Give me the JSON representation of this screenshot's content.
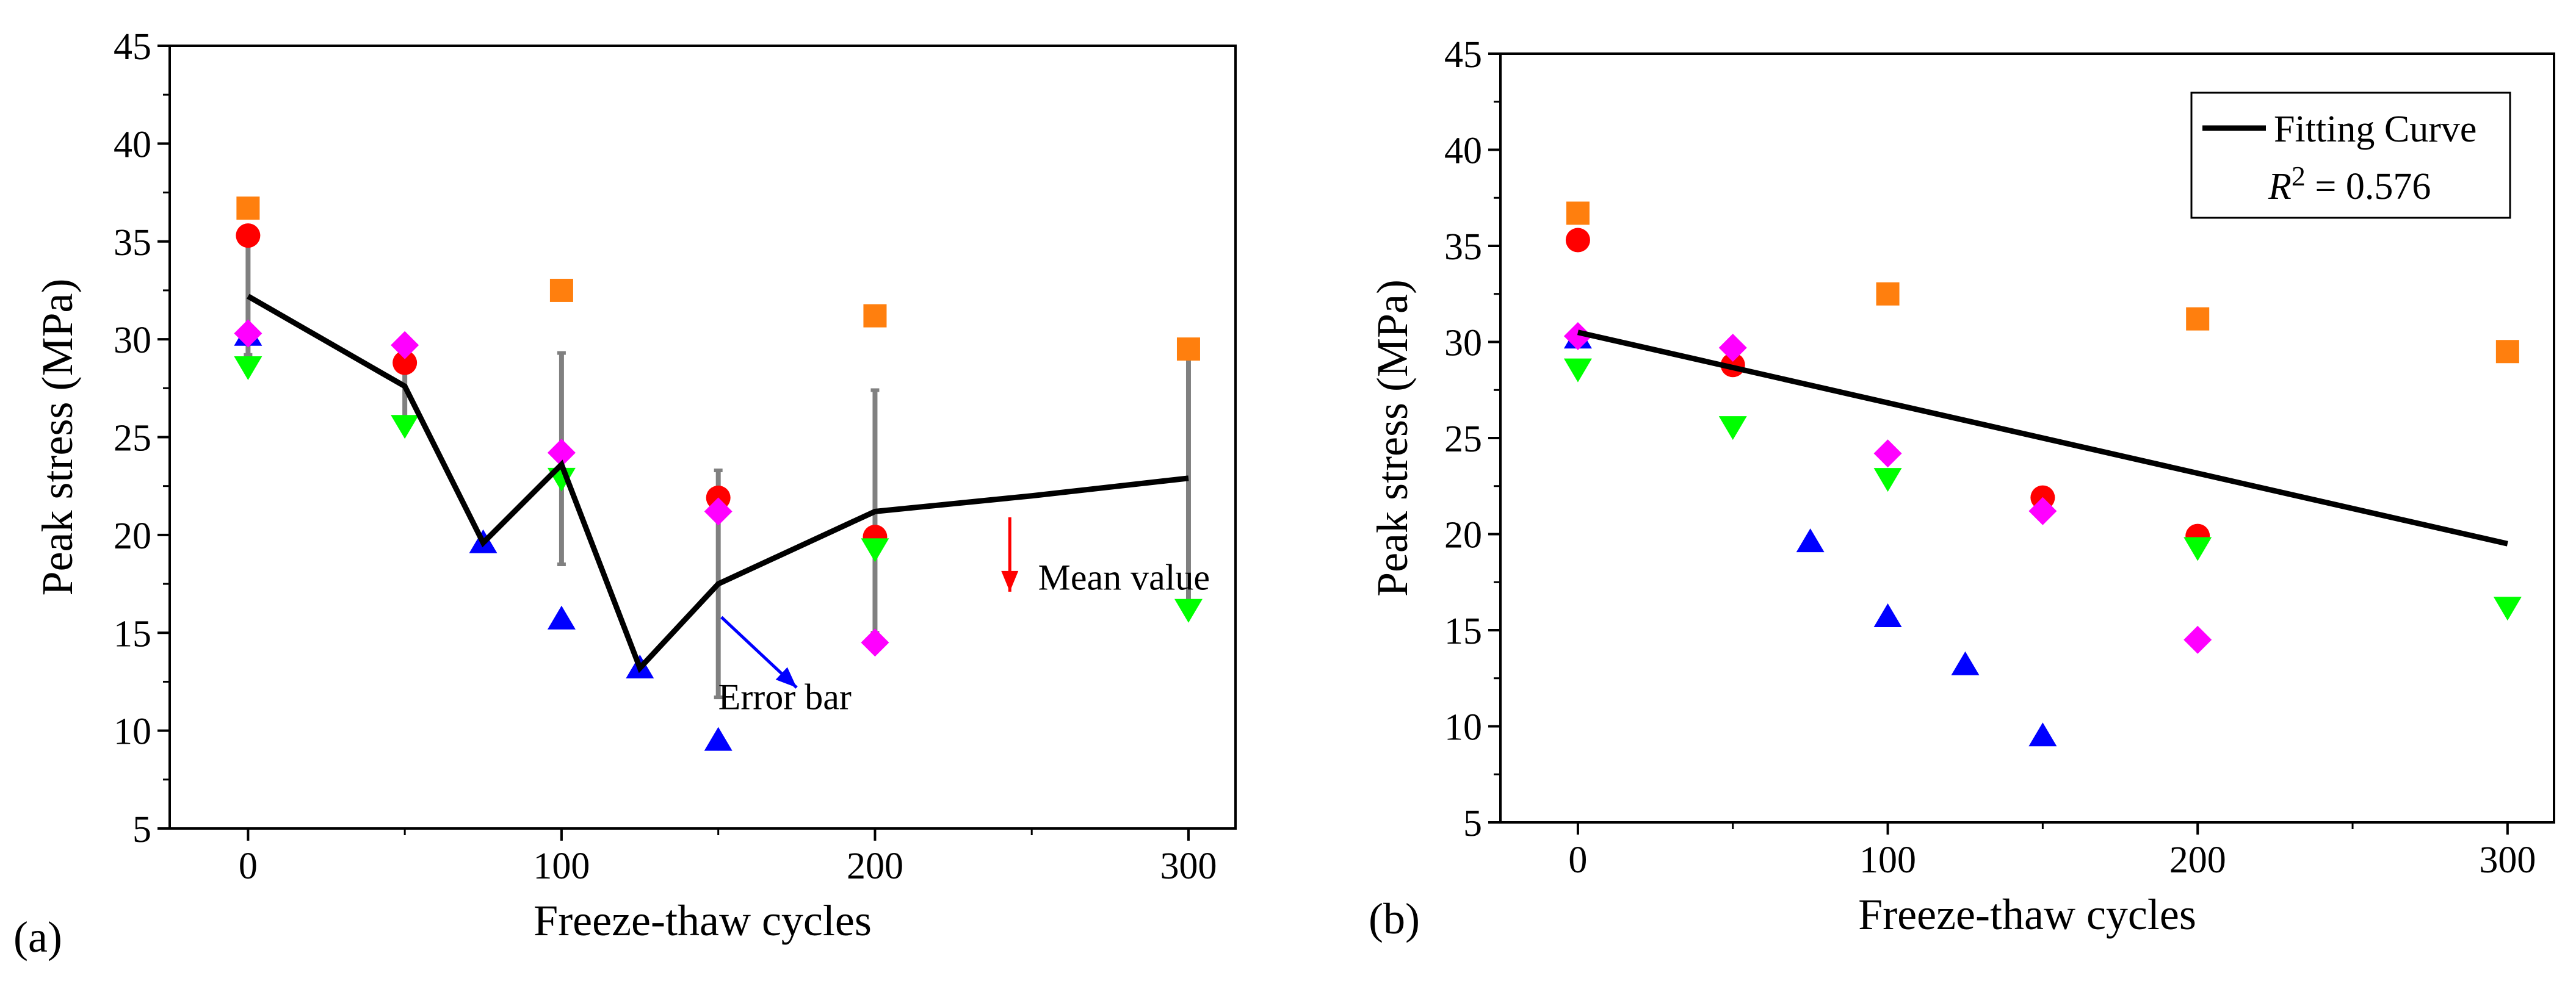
{
  "chart_data": [
    {
      "type": "scatter",
      "panel_label": "(a)",
      "xlabel": "Freeze-thaw cycles",
      "ylabel": "Peak stress (MPa)",
      "xlim": [
        -25,
        315
      ],
      "ylim": [
        5,
        45
      ],
      "xticks": [
        0,
        100,
        200,
        300
      ],
      "yticks": [
        5,
        10,
        15,
        20,
        25,
        30,
        35,
        40,
        45
      ],
      "grid": false,
      "colors": {
        "square": "#ff7f0e",
        "circle": "#ff0000",
        "triangle_up": "#0000ff",
        "triangle_down": "#00ff00",
        "diamond": "#ff00ff",
        "mean_line": "#000000",
        "error_bar": "#808080",
        "mean_annotation": "#ff0000",
        "error_annotation": "#0000ff"
      },
      "series": [
        {
          "name": "square",
          "marker": "square",
          "color": "#ff7f0e",
          "x": [
            0,
            100,
            200,
            300
          ],
          "y": [
            36.7,
            32.5,
            31.2,
            29.5
          ]
        },
        {
          "name": "circle",
          "marker": "circle",
          "color": "#ff0000",
          "x": [
            0,
            50,
            150,
            200
          ],
          "y": [
            35.3,
            28.8,
            21.9,
            19.9
          ]
        },
        {
          "name": "triangle-up",
          "marker": "triangle-up",
          "color": "#0000ff",
          "x": [
            0,
            75,
            100,
            125,
            150
          ],
          "y": [
            30.2,
            19.6,
            15.7,
            13.2,
            9.5
          ]
        },
        {
          "name": "triangle-down",
          "marker": "triangle-down",
          "color": "#00ff00",
          "x": [
            0,
            50,
            100,
            200,
            300
          ],
          "y": [
            28.6,
            25.6,
            22.9,
            19.3,
            16.2
          ]
        },
        {
          "name": "diamond",
          "marker": "diamond",
          "color": "#ff00ff",
          "x": [
            0,
            50,
            100,
            150,
            200
          ],
          "y": [
            30.3,
            29.7,
            24.2,
            21.2,
            14.5
          ]
        }
      ],
      "mean_line": {
        "x": [
          0,
          50,
          75,
          100,
          125,
          150,
          200,
          250,
          300
        ],
        "y": [
          32.2,
          27.6,
          19.6,
          23.6,
          13.2,
          17.5,
          21.2,
          22.0,
          22.9
        ]
      },
      "error_bars": [
        {
          "x": 0,
          "low": 29.2,
          "high": 35.2
        },
        {
          "x": 50,
          "low": 26.0,
          "high": 29.3
        },
        {
          "x": 100,
          "low": 18.5,
          "high": 29.3
        },
        {
          "x": 150,
          "low": 11.7,
          "high": 23.3
        },
        {
          "x": 200,
          "low": 15.0,
          "high": 27.4
        },
        {
          "x": 300,
          "low": 16.2,
          "high": 29.6
        }
      ],
      "annotations": [
        {
          "text": "Mean value",
          "color": "#ff0000",
          "text_x": 252,
          "text_y": 17.2,
          "arrow_from": [
            243,
            20.9
          ],
          "arrow_to": [
            243,
            17.1
          ]
        },
        {
          "text": "Error bar",
          "color": "#0000ff",
          "text_x": 150,
          "text_y": 11.1,
          "arrow_from": [
            151,
            15.8
          ],
          "arrow_to": [
            175,
            12.2
          ]
        }
      ]
    },
    {
      "type": "scatter",
      "panel_label": "(b)",
      "xlabel": "Freeze-thaw cycles",
      "ylabel": "Peak stress (MPa)",
      "xlim": [
        -25,
        315
      ],
      "ylim": [
        5,
        45
      ],
      "xticks": [
        0,
        100,
        200,
        300
      ],
      "yticks": [
        5,
        10,
        15,
        20,
        25,
        30,
        35,
        40,
        45
      ],
      "grid": false,
      "legend": {
        "line_label": "Fitting Curve",
        "r2_label": "R",
        "r2_power": "2",
        "r2_value": " = 0.576",
        "position": "top-right"
      },
      "series": [
        {
          "name": "square",
          "marker": "square",
          "color": "#ff7f0e",
          "x": [
            0,
            100,
            200,
            300
          ],
          "y": [
            36.7,
            32.5,
            31.2,
            29.5
          ]
        },
        {
          "name": "circle",
          "marker": "circle",
          "color": "#ff0000",
          "x": [
            0,
            50,
            150,
            200
          ],
          "y": [
            35.3,
            28.8,
            21.9,
            19.9
          ]
        },
        {
          "name": "triangle-up",
          "marker": "triangle-up",
          "color": "#0000ff",
          "x": [
            0,
            75,
            100,
            125,
            150
          ],
          "y": [
            30.2,
            19.6,
            15.7,
            13.2,
            9.5
          ]
        },
        {
          "name": "triangle-down",
          "marker": "triangle-down",
          "color": "#00ff00",
          "x": [
            0,
            50,
            100,
            200,
            300
          ],
          "y": [
            28.6,
            25.6,
            22.9,
            19.3,
            16.2
          ]
        },
        {
          "name": "diamond",
          "marker": "diamond",
          "color": "#ff00ff",
          "x": [
            0,
            50,
            100,
            150,
            200
          ],
          "y": [
            30.3,
            29.7,
            24.2,
            21.2,
            14.5
          ]
        }
      ],
      "fit_line": {
        "x": [
          0,
          300
        ],
        "y": [
          30.5,
          19.5
        ]
      }
    }
  ]
}
